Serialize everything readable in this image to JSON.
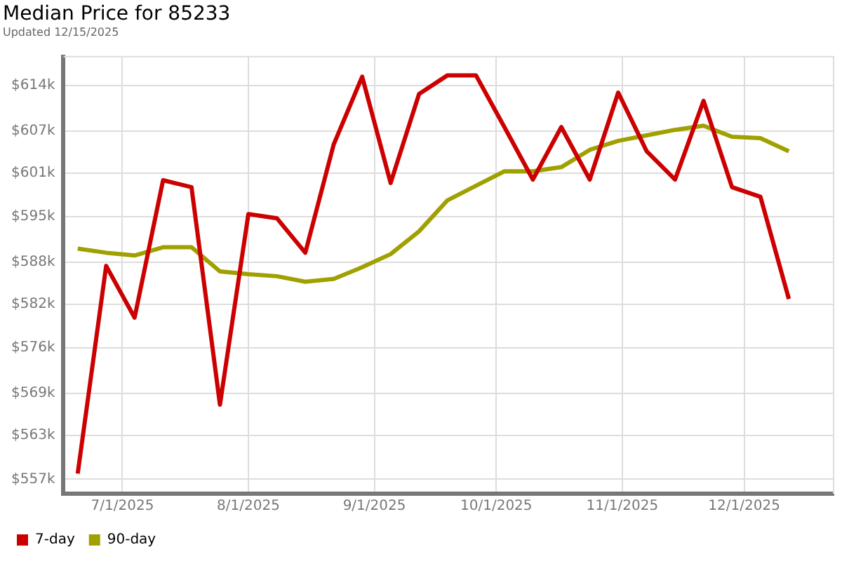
{
  "chart_data": {
    "type": "line",
    "title": "Median Price for 85233",
    "subtitle": "Updated 12/15/2025",
    "x": [
      "2025-06-20",
      "2025-06-27",
      "2025-07-04",
      "2025-07-11",
      "2025-07-18",
      "2025-07-25",
      "2025-08-01",
      "2025-08-08",
      "2025-08-15",
      "2025-08-22",
      "2025-08-29",
      "2025-09-05",
      "2025-09-12",
      "2025-09-19",
      "2025-09-26",
      "2025-10-03",
      "2025-10-10",
      "2025-10-17",
      "2025-10-24",
      "2025-10-31",
      "2025-11-07",
      "2025-11-14",
      "2025-11-21",
      "2025-11-28",
      "2025-12-05",
      "2025-12-12"
    ],
    "series": [
      {
        "name": "7-day",
        "color": "#cc0000",
        "values": [
          557.8,
          587.9,
          580.4,
          600.3,
          599.3,
          567.8,
          595.4,
          594.8,
          589.8,
          605.5,
          615.3,
          599.9,
          612.8,
          615.5,
          615.5,
          608.0,
          600.4,
          608.0,
          600.4,
          613.0,
          604.5,
          600.4,
          611.8,
          599.3,
          597.9,
          583.1
        ]
      },
      {
        "name": "90-day",
        "color": "#a0a000",
        "values": [
          590.4,
          589.8,
          589.4,
          590.6,
          590.6,
          587.1,
          586.7,
          586.4,
          585.6,
          586.0,
          587.7,
          589.6,
          592.9,
          597.4,
          599.5,
          601.6,
          601.6,
          602.2,
          604.7,
          606.0,
          606.8,
          607.6,
          608.2,
          606.6,
          606.4,
          604.5
        ]
      }
    ],
    "xlim": [
      "2025-06-16T12:00",
      "2025-12-23"
    ],
    "xticks": [
      {
        "value": "2025-07-01",
        "label": "7/1/2025"
      },
      {
        "value": "2025-08-01",
        "label": "8/1/2025"
      },
      {
        "value": "2025-09-01",
        "label": "9/1/2025"
      },
      {
        "value": "2025-10-01",
        "label": "10/1/2025"
      },
      {
        "value": "2025-11-01",
        "label": "11/1/2025"
      },
      {
        "value": "2025-12-01",
        "label": "12/1/2025"
      }
    ],
    "ylim": [
      554.9,
      618.2
    ],
    "yticks": [
      {
        "value": 557,
        "label": "$557k"
      },
      {
        "value": 563.333,
        "label": "$563k"
      },
      {
        "value": 569.4,
        "label": "$569k"
      },
      {
        "value": 576,
        "label": "$576k"
      },
      {
        "value": 582.333,
        "label": "$582k"
      },
      {
        "value": 588.4,
        "label": "$588k"
      },
      {
        "value": 595,
        "label": "$595k"
      },
      {
        "value": 601.333,
        "label": "$601k"
      },
      {
        "value": 607.4,
        "label": "$607k"
      },
      {
        "value": 614,
        "label": "$614k"
      }
    ],
    "grid": true,
    "legend": "bottom left",
    "marker": "none",
    "line_style": "solid"
  }
}
